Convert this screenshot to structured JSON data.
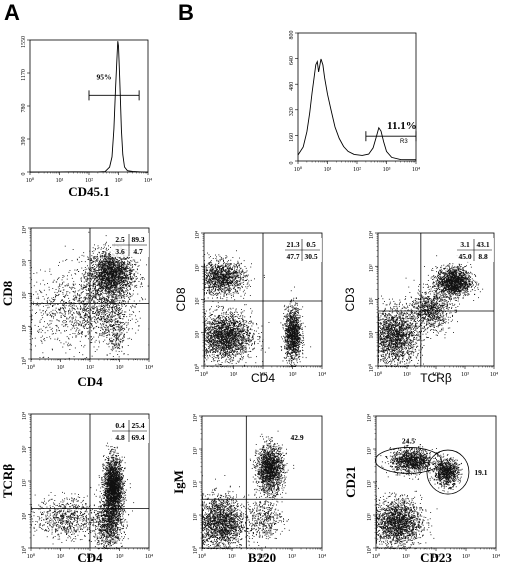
{
  "panel_labels": [
    "A",
    "B"
  ],
  "chart_data": [
    {
      "id": "A-hist",
      "type": "histogram",
      "xlabel": "CD45.1",
      "ylabel": "",
      "xscale": "log",
      "xlim": [
        1,
        10000
      ],
      "x_ticks": [
        "10⁰",
        "10¹",
        "10²",
        "10³",
        "10⁴"
      ],
      "y_ticks": [
        "0",
        "390",
        "780",
        "1170",
        "1550"
      ],
      "ylim": [
        0,
        1550
      ],
      "curve": [
        [
          1,
          0
        ],
        [
          30,
          0
        ],
        [
          200,
          3
        ],
        [
          350,
          12
        ],
        [
          500,
          60
        ],
        [
          600,
          180
        ],
        [
          700,
          500
        ],
        [
          800,
          1000
        ],
        [
          900,
          1400
        ],
        [
          950,
          1540
        ],
        [
          1000,
          1480
        ],
        [
          1100,
          1100
        ],
        [
          1250,
          500
        ],
        [
          1400,
          200
        ],
        [
          1600,
          60
        ],
        [
          2000,
          12
        ],
        [
          3000,
          3
        ],
        [
          10000,
          0
        ]
      ],
      "gate": {
        "label": "95%",
        "x_range": [
          100,
          5000
        ],
        "y": 900
      }
    },
    {
      "id": "B-hist",
      "type": "histogram",
      "xlabel": "",
      "ylabel": "",
      "xscale": "log",
      "xlim": [
        1,
        10000
      ],
      "x_ticks": [
        "10⁰",
        "10¹",
        "10²",
        "10³",
        "10⁴"
      ],
      "y_ticks": [
        "0",
        "160",
        "320",
        "480",
        "640",
        "800"
      ],
      "ylim": [
        0,
        800
      ],
      "curve": [
        [
          1,
          40
        ],
        [
          1.5,
          90
        ],
        [
          2,
          180
        ],
        [
          2.5,
          300
        ],
        [
          3,
          430
        ],
        [
          3.5,
          520
        ],
        [
          4,
          600
        ],
        [
          4.5,
          620
        ],
        [
          5,
          560
        ],
        [
          6,
          640
        ],
        [
          7,
          600
        ],
        [
          8,
          520
        ],
        [
          10,
          420
        ],
        [
          13,
          320
        ],
        [
          18,
          210
        ],
        [
          25,
          140
        ],
        [
          35,
          90
        ],
        [
          50,
          60
        ],
        [
          80,
          45
        ],
        [
          150,
          35
        ],
        [
          250,
          45
        ],
        [
          350,
          80
        ],
        [
          450,
          150
        ],
        [
          550,
          210
        ],
        [
          650,
          190
        ],
        [
          800,
          120
        ],
        [
          1000,
          60
        ],
        [
          1500,
          25
        ],
        [
          3000,
          10
        ],
        [
          10000,
          5
        ]
      ],
      "gate": {
        "label": "11.1%",
        "gate_name": "R3",
        "x_range": [
          200,
          10000
        ],
        "y": 155
      }
    },
    {
      "id": "A-dot1",
      "type": "scatter",
      "xlabel": "CD4",
      "ylabel": "CD8",
      "xscale": "log",
      "yscale": "log",
      "xlim": [
        1,
        10000
      ],
      "ylim": [
        1,
        10000
      ],
      "x_ticks": [
        "10⁰",
        "10¹",
        "10²",
        "10³",
        "10⁴"
      ],
      "y_ticks": [
        "10⁰",
        "10¹",
        "10²",
        "10³",
        "10⁴"
      ],
      "gate_lines": {
        "x": 100,
        "y": 50
      },
      "quadrant_values": {
        "UL": "2.5",
        "UR": "89.3",
        "LL": "3.6",
        "LR": "4.7"
      },
      "populations": [
        {
          "cx": 500,
          "cy": 400,
          "sx": 0.38,
          "sy": 0.36,
          "n": 2200
        },
        {
          "cx": 700,
          "cy": 12,
          "sx": 0.18,
          "sy": 0.55,
          "n": 350
        },
        {
          "cx": 30,
          "cy": 30,
          "sx": 0.8,
          "sy": 0.6,
          "n": 900
        },
        {
          "cx": 300,
          "cy": 40,
          "sx": 0.5,
          "sy": 0.5,
          "n": 500
        }
      ]
    },
    {
      "id": "B-dot1",
      "type": "scatter",
      "xlabel": "CD4",
      "ylabel": "CD8",
      "xscale": "log",
      "yscale": "log",
      "xlim": [
        1,
        10000
      ],
      "ylim": [
        1,
        10000
      ],
      "x_ticks": [
        "10⁰",
        "10¹",
        "10²",
        "10³",
        "10⁴"
      ],
      "y_ticks": [
        "10⁰",
        "10¹",
        "10²",
        "10³",
        "10⁴"
      ],
      "gate_lines": {
        "x": 100,
        "y": 90
      },
      "quadrant_values": {
        "UL": "21.3",
        "UR": "0.5",
        "LL": "47.7",
        "LR": "30.5"
      },
      "populations": [
        {
          "cx": 4,
          "cy": 450,
          "sx": 0.4,
          "sy": 0.25,
          "n": 1300
        },
        {
          "cx": 5,
          "cy": 8,
          "sx": 0.45,
          "sy": 0.35,
          "n": 2200
        },
        {
          "cx": 1000,
          "cy": 9,
          "sx": 0.14,
          "sy": 0.4,
          "n": 1300
        }
      ]
    },
    {
      "id": "B-dot2",
      "type": "scatter",
      "xlabel": "TCRβ",
      "ylabel": "CD3",
      "xscale": "log",
      "yscale": "log",
      "xlim": [
        1,
        10000
      ],
      "ylim": [
        1,
        10000
      ],
      "x_ticks": [
        "10⁰",
        "10¹",
        "10²",
        "10³",
        "10⁴"
      ],
      "y_ticks": [
        "10⁰",
        "10¹",
        "10²",
        "10³",
        "10⁴"
      ],
      "gate_lines": {
        "x": 30,
        "y": 45
      },
      "quadrant_values": {
        "UL": "3.1",
        "UR": "43.1",
        "LL": "45.0",
        "LR": "8.8"
      },
      "populations": [
        {
          "cx": 4,
          "cy": 8,
          "sx": 0.4,
          "sy": 0.4,
          "n": 1800
        },
        {
          "cx": 60,
          "cy": 50,
          "sx": 0.35,
          "sy": 0.3,
          "n": 900
        },
        {
          "cx": 400,
          "cy": 350,
          "sx": 0.3,
          "sy": 0.22,
          "n": 1600
        }
      ]
    },
    {
      "id": "A-dot2",
      "type": "scatter",
      "xlabel": "CD4",
      "ylabel": "TCRβ",
      "xscale": "log",
      "yscale": "log",
      "xlim": [
        1,
        10000
      ],
      "ylim": [
        1,
        10000
      ],
      "x_ticks": [
        "10⁰",
        "10¹",
        "10²",
        "10³",
        "10⁴"
      ],
      "y_ticks": [
        "10⁰",
        "10¹",
        "10²",
        "10³",
        "10⁴"
      ],
      "gate_lines": {
        "x": 100,
        "y": 15
      },
      "quadrant_values": {
        "UL": "0.4",
        "UR": "25.4",
        "LL": "4.8",
        "LR": "69.4"
      },
      "populations": [
        {
          "cx": 600,
          "cy": 60,
          "sx": 0.16,
          "sy": 0.45,
          "n": 2500
        },
        {
          "cx": 400,
          "cy": 5,
          "sx": 0.25,
          "sy": 0.35,
          "n": 900
        },
        {
          "cx": 15,
          "cy": 8,
          "sx": 0.5,
          "sy": 0.3,
          "n": 700
        }
      ]
    },
    {
      "id": "B-dot3",
      "type": "scatter",
      "xlabel": "B220",
      "ylabel": "IgM",
      "xscale": "log",
      "yscale": "log",
      "xlim": [
        1,
        10000
      ],
      "ylim": [
        1,
        10000
      ],
      "x_ticks": [
        "10⁰",
        "10¹",
        "10²",
        "10³",
        "10⁴"
      ],
      "y_ticks": [
        "10⁰",
        "10¹",
        "10²",
        "10³",
        "10⁴"
      ],
      "gate_lines": {
        "x": 30,
        "y": 30
      },
      "quadrant_values": {
        "UR": "42.9"
      },
      "populations": [
        {
          "cx": 4,
          "cy": 6,
          "sx": 0.4,
          "sy": 0.4,
          "n": 1900
        },
        {
          "cx": 180,
          "cy": 250,
          "sx": 0.22,
          "sy": 0.35,
          "n": 1700
        },
        {
          "cx": 120,
          "cy": 8,
          "sx": 0.3,
          "sy": 0.3,
          "n": 400
        }
      ]
    },
    {
      "id": "B-dot4",
      "type": "scatter",
      "xlabel": "CD23",
      "ylabel": "CD21",
      "xscale": "log",
      "yscale": "log",
      "xlim": [
        1,
        10000
      ],
      "ylim": [
        1,
        10000
      ],
      "x_ticks": [
        "10⁰",
        "10¹",
        "10²",
        "10³",
        "10⁴"
      ],
      "y_ticks": [
        "10⁰",
        "10¹",
        "10²",
        "10³",
        "10⁴"
      ],
      "gate_ellipses": [
        {
          "label": "24.5",
          "cx": 12,
          "cy": 450
        },
        {
          "label": "19.1",
          "cx": 250,
          "cy": 200
        }
      ],
      "populations": [
        {
          "cx": 5,
          "cy": 6,
          "sx": 0.4,
          "sy": 0.35,
          "n": 1900
        },
        {
          "cx": 15,
          "cy": 450,
          "sx": 0.35,
          "sy": 0.18,
          "n": 1200
        },
        {
          "cx": 220,
          "cy": 200,
          "sx": 0.2,
          "sy": 0.2,
          "n": 900
        }
      ]
    }
  ]
}
